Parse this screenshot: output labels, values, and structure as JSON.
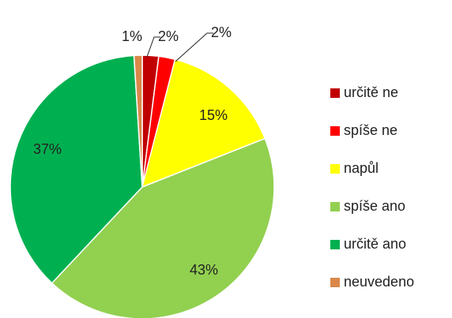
{
  "chart_data": {
    "type": "pie",
    "categories": [
      "určitě ne",
      "spíše ne",
      "napůl",
      "spíše ano",
      "určitě ano",
      "neuvedeno"
    ],
    "values": [
      2,
      2,
      15,
      43,
      37,
      1
    ],
    "value_labels": [
      "2%",
      "2%",
      "15%",
      "43%",
      "37%",
      "1%"
    ],
    "colors": [
      "#c00000",
      "#ff0000",
      "#ffff00",
      "#92d050",
      "#00b050",
      "#d9884a"
    ],
    "legend": "right"
  }
}
